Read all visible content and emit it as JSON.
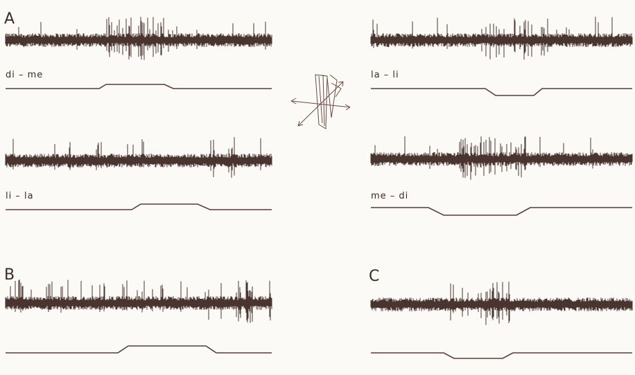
{
  "panel_labels": [
    "A",
    "B",
    "C"
  ],
  "stimulus_labels": [
    "di – me",
    "la – li",
    "li – la",
    "me – di"
  ]
}
